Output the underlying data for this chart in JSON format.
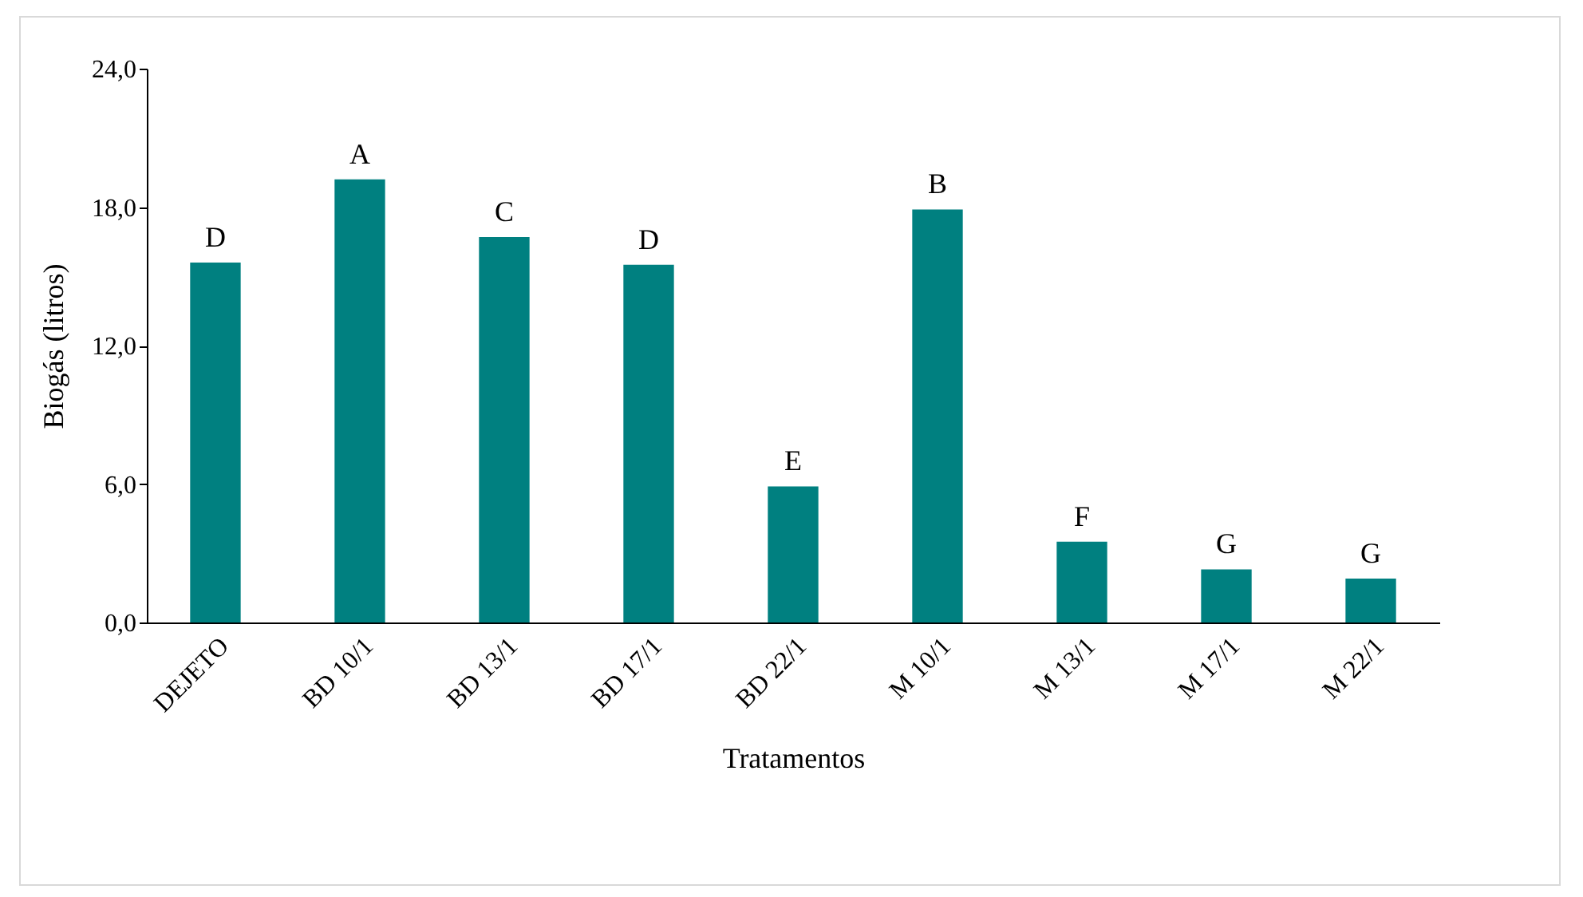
{
  "chart_data": {
    "type": "bar",
    "xlabel": "Tratamentos",
    "ylabel": "Biogás (litros)",
    "categories": [
      "DEJETO",
      "BD 10/1",
      "BD 13/1",
      "BD 17/1",
      "BD 22/1",
      "M 10/1",
      "M 13/1",
      "M 17/1",
      "M 22/1"
    ],
    "values": [
      15.6,
      19.2,
      16.7,
      15.5,
      5.9,
      17.9,
      3.5,
      2.3,
      1.9
    ],
    "color": "#008080",
    "ylim": [
      0,
      24
    ],
    "yticks": [
      {
        "value": 0,
        "label": "0,0"
      },
      {
        "value": 6,
        "label": "6,0"
      },
      {
        "value": 12,
        "label": "12,0"
      },
      {
        "value": 18,
        "label": "18,0"
      },
      {
        "value": 24,
        "label": "24,0"
      }
    ],
    "grid": false,
    "annotations": [
      {
        "text": "D",
        "x": "DEJETO",
        "y": 15.6
      },
      {
        "text": "A",
        "x": "BD 10/1",
        "y": 19.2
      },
      {
        "text": "C",
        "x": "BD 13/1",
        "y": 16.7
      },
      {
        "text": "D",
        "x": "BD 17/1",
        "y": 15.5
      },
      {
        "text": "E",
        "x": "BD 22/1",
        "y": 5.9
      },
      {
        "text": "B",
        "x": "M 10/1",
        "y": 17.9
      },
      {
        "text": "F",
        "x": "M 13/1",
        "y": 3.5
      },
      {
        "text": "G",
        "x": "M 17/1",
        "y": 2.3
      },
      {
        "text": "G",
        "x": "M 22/1",
        "y": 1.9
      }
    ]
  }
}
